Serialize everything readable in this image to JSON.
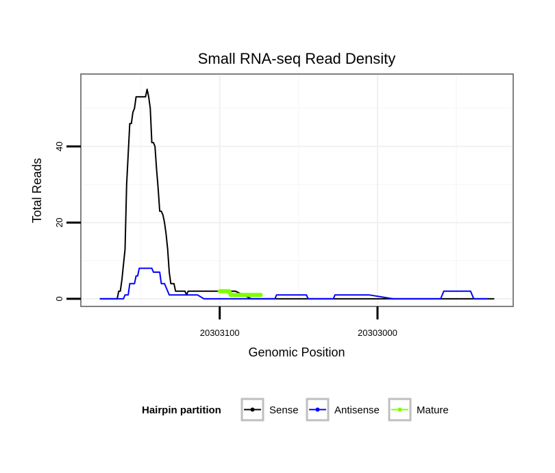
{
  "chart_data": {
    "type": "line",
    "title": "Small RNA-seq Read Density",
    "xlabel": "Genomic Position",
    "ylabel": "Total Reads",
    "xlim": [
      20303188,
      20302914
    ],
    "ylim": [
      -2,
      59
    ],
    "x_reversed": true,
    "x_ticks": [
      20303100,
      20303000
    ],
    "x_tick_labels": [
      "20303100",
      "20303000"
    ],
    "y_ticks": [
      0,
      20,
      40
    ],
    "y_tick_labels": [
      "0",
      "20",
      "40"
    ],
    "grid": true,
    "legend": {
      "title": "Hairpin partition",
      "position": "bottom",
      "entries": [
        "Sense",
        "Antisense",
        "Mature"
      ]
    },
    "series": [
      {
        "name": "Sense",
        "color": "#000000",
        "x": [
          20303176,
          20303165,
          20303164,
          20303163,
          20303162,
          20303160,
          20303159,
          20303158,
          20303157,
          20303156,
          20303155,
          20303154,
          20303153,
          20303152,
          20303151,
          20303150,
          20303149,
          20303148,
          20303147,
          20303146,
          20303145,
          20303144,
          20303143,
          20303142,
          20303141,
          20303140,
          20303139,
          20303138,
          20303137,
          20303136,
          20303135,
          20303134,
          20303133,
          20303132,
          20303131,
          20303129,
          20303128,
          20303122,
          20303121,
          20303120,
          20303110,
          20303100,
          20303090,
          20303080,
          20303060,
          20303040,
          20303020,
          20303000,
          20302980,
          20302960,
          20302940,
          20302926
        ],
        "values": [
          0,
          0,
          2,
          2,
          5,
          13,
          30,
          38,
          46,
          46,
          49,
          50,
          53,
          53,
          53,
          53,
          53,
          53,
          53,
          55,
          53,
          50,
          41,
          41,
          40,
          34,
          29,
          23,
          23,
          22,
          20,
          17,
          13,
          7,
          4,
          4,
          2,
          2,
          1,
          2,
          2,
          2,
          2,
          0,
          0,
          0,
          0,
          0,
          0,
          0,
          0,
          0
        ]
      },
      {
        "name": "Antisense",
        "color": "#0000ff",
        "x": [
          20303176,
          20303163,
          20303161,
          20303160,
          20303158,
          20303157,
          20303156,
          20303154,
          20303153,
          20303152,
          20303151,
          20303148,
          20303147,
          20303146,
          20303143,
          20303142,
          20303139,
          20303138,
          20303137,
          20303136,
          20303135,
          20303133,
          20303132,
          20303130,
          20303128,
          20303120,
          20303114,
          20303110,
          20303100,
          20303080,
          20303065,
          20303064,
          20303045,
          20303044,
          20303028,
          20303027,
          20303005,
          20302990,
          20302970,
          20302960,
          20302958,
          20302941,
          20302939,
          20302930
        ],
        "values": [
          0,
          0,
          0,
          1,
          1,
          4,
          4,
          4,
          6,
          6,
          8,
          8,
          8,
          8,
          8,
          7,
          7,
          7,
          4,
          4,
          4,
          2,
          1,
          1,
          1,
          1,
          1,
          0,
          0,
          0,
          0,
          1,
          1,
          0,
          0,
          1,
          1,
          0,
          0,
          0,
          2,
          2,
          0,
          0
        ]
      },
      {
        "name": "Mature",
        "color": "#7fff00",
        "x": [
          20303100,
          20303094,
          20303093,
          20303085,
          20303074
        ],
        "values": [
          2,
          2,
          1,
          1,
          1
        ]
      }
    ]
  }
}
